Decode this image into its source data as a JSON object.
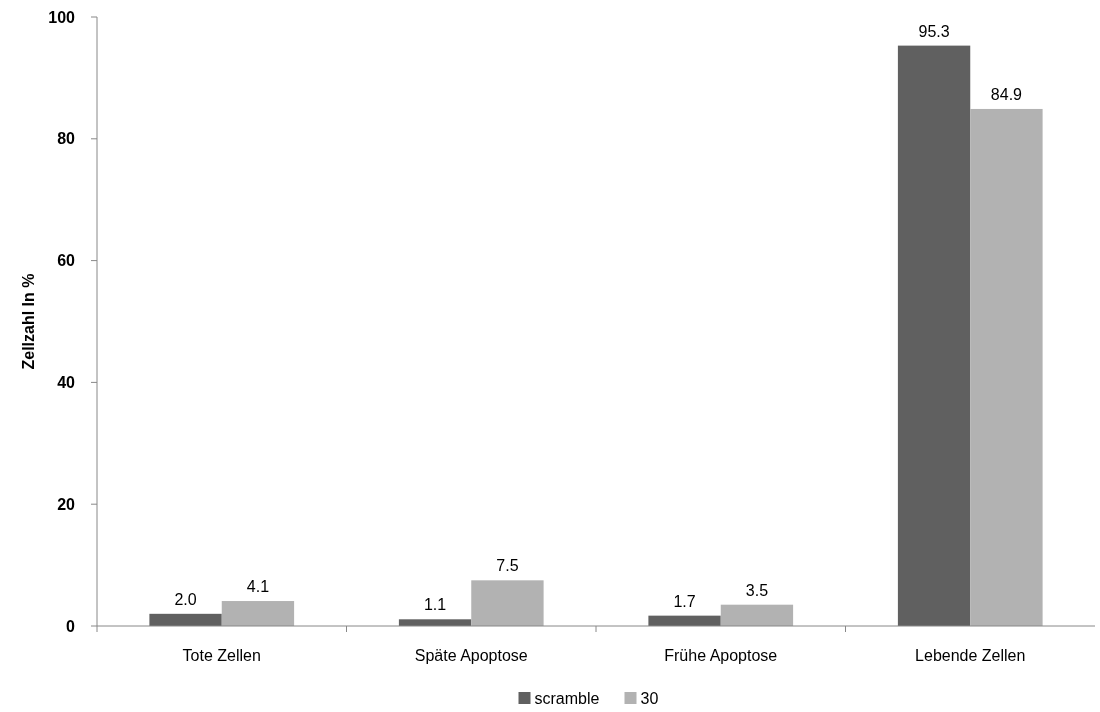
{
  "chart_data": {
    "type": "bar",
    "ylabel": "Zellzahl In %",
    "categories": [
      "Tote Zellen",
      "Späte Apoptose",
      "Frühe Apoptose",
      "Lebende Zellen"
    ],
    "series": [
      {
        "name": "scramble",
        "color": "#606060",
        "values": [
          2.0,
          1.1,
          1.7,
          95.3
        ],
        "value_labels": [
          "2.0",
          "1.1",
          "1.7",
          "95.3"
        ]
      },
      {
        "name": "30",
        "color": "#b2b2b2",
        "values": [
          4.1,
          7.5,
          3.5,
          84.9
        ],
        "value_labels": [
          "4.1",
          "7.5",
          "3.5",
          "84.9"
        ]
      }
    ],
    "ylim": [
      0,
      100
    ],
    "yticks": [
      0,
      20,
      40,
      60,
      80,
      100
    ],
    "grid": false,
    "legend": "bottom"
  }
}
